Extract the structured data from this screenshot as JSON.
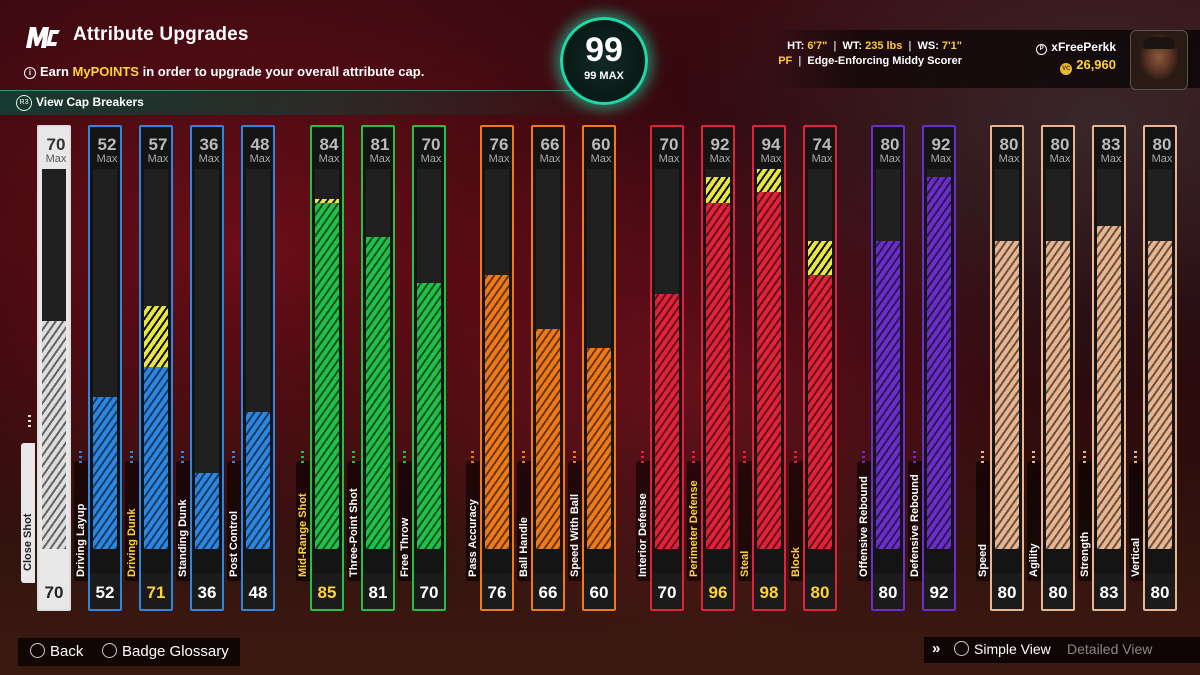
{
  "header": {
    "logo": "MC",
    "title": "Attribute Upgrades",
    "hint_prefix": "Earn ",
    "hint_highlight": "MyPOINTS",
    "hint_suffix": " in order to upgrade your overall attribute cap.",
    "cap_breakers": "View Cap Breakers"
  },
  "overall": {
    "value": "99",
    "max_label": "99 MAX"
  },
  "player": {
    "ht_label": "HT:",
    "ht": "6'7\"",
    "wt_label": "WT:",
    "wt": "235 lbs",
    "ws_label": "WS:",
    "ws": "7'1\"",
    "position": "PF",
    "archetype": "Edge-Enforcing Middy Scorer",
    "username": "xFreePerkk",
    "vc": "26,960"
  },
  "colors": {
    "close": "#dddddd",
    "inside": "#2f86e0",
    "shooting": "#22c04a",
    "playmaking": "#ee7a1a",
    "defense": "#e0233a",
    "rebound": "#6a2fc8",
    "athletic": "#e8b590",
    "upgrade": "#e8e640"
  },
  "max_label": "Max",
  "attributes": [
    {
      "name": "Close Shot",
      "max": "70",
      "cur": "70",
      "fill_pct": 60,
      "up_pct": 0,
      "color": "close"
    },
    {
      "name": "Driving Layup",
      "max": "52",
      "cur": "52",
      "fill_pct": 40,
      "up_pct": 0,
      "color": "inside"
    },
    {
      "name": "Driving Dunk",
      "max": "57",
      "cur": "71",
      "fill_pct": 48,
      "up_pct": 16,
      "color": "inside",
      "highlight": true
    },
    {
      "name": "Standing Dunk",
      "max": "36",
      "cur": "36",
      "fill_pct": 20,
      "up_pct": 0,
      "color": "inside"
    },
    {
      "name": "Post Control",
      "max": "48",
      "cur": "48",
      "fill_pct": 36,
      "up_pct": 0,
      "color": "inside"
    },
    {
      "name": "Mid-Range Shot",
      "max": "84",
      "cur": "85",
      "fill_pct": 91,
      "up_pct": 1,
      "color": "shooting",
      "highlight": true
    },
    {
      "name": "Three-Point Shot",
      "max": "81",
      "cur": "81",
      "fill_pct": 82,
      "up_pct": 0,
      "color": "shooting"
    },
    {
      "name": "Free Throw",
      "max": "70",
      "cur": "70",
      "fill_pct": 70,
      "up_pct": 0,
      "color": "shooting"
    },
    {
      "name": "Pass Accuracy",
      "max": "76",
      "cur": "76",
      "fill_pct": 72,
      "up_pct": 0,
      "color": "playmaking"
    },
    {
      "name": "Ball Handle",
      "max": "66",
      "cur": "66",
      "fill_pct": 58,
      "up_pct": 0,
      "color": "playmaking"
    },
    {
      "name": "Speed With Ball",
      "max": "60",
      "cur": "60",
      "fill_pct": 53,
      "up_pct": 0,
      "color": "playmaking"
    },
    {
      "name": "Interior Defense",
      "max": "70",
      "cur": "70",
      "fill_pct": 67,
      "up_pct": 0,
      "color": "defense"
    },
    {
      "name": "Perimeter Defense",
      "max": "92",
      "cur": "96",
      "fill_pct": 91,
      "up_pct": 7,
      "color": "defense",
      "highlight": true
    },
    {
      "name": "Steal",
      "max": "94",
      "cur": "98",
      "fill_pct": 94,
      "up_pct": 7,
      "color": "defense",
      "highlight": true
    },
    {
      "name": "Block",
      "max": "74",
      "cur": "80",
      "fill_pct": 72,
      "up_pct": 9,
      "color": "defense",
      "highlight": true
    },
    {
      "name": "Offensive Rebound",
      "max": "80",
      "cur": "80",
      "fill_pct": 81,
      "up_pct": 0,
      "color": "rebound"
    },
    {
      "name": "Defensive Rebound",
      "max": "92",
      "cur": "92",
      "fill_pct": 98,
      "up_pct": 0,
      "color": "rebound"
    },
    {
      "name": "Speed",
      "max": "80",
      "cur": "80",
      "fill_pct": 81,
      "up_pct": 0,
      "color": "athletic"
    },
    {
      "name": "Agility",
      "max": "80",
      "cur": "80",
      "fill_pct": 81,
      "up_pct": 0,
      "color": "athletic"
    },
    {
      "name": "Strength",
      "max": "83",
      "cur": "83",
      "fill_pct": 85,
      "up_pct": 0,
      "color": "athletic"
    },
    {
      "name": "Vertical",
      "max": "80",
      "cur": "80",
      "fill_pct": 81,
      "up_pct": 0,
      "color": "athletic"
    }
  ],
  "footer": {
    "back": "Back",
    "glossary": "Badge Glossary",
    "simple_view": "Simple View",
    "detailed_view": "Detailed View"
  }
}
